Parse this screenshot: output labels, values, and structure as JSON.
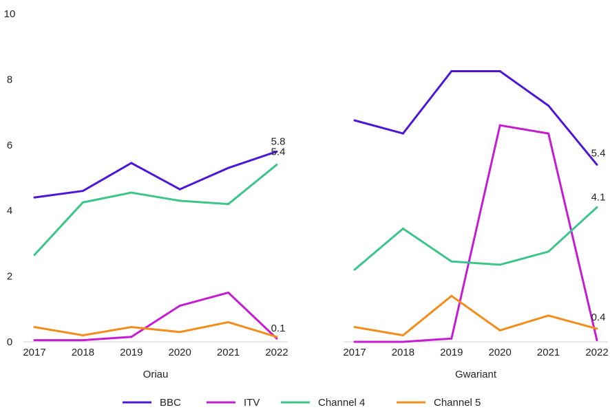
{
  "chart_data": {
    "type": "line",
    "ylim": [
      0,
      10
    ],
    "yticks": [
      "0",
      "2",
      "4",
      "6",
      "8",
      "10"
    ],
    "grid": false,
    "legend_position": "bottom",
    "series_names": [
      "BBC",
      "ITV",
      "Channel 4",
      "Channel 5"
    ],
    "colors": {
      "BBC": "#4B16D6",
      "ITV": "#C41CD0",
      "Channel 4": "#3CC489",
      "Channel 5": "#F28C1A"
    },
    "panels": [
      {
        "xlabel": "Oriau",
        "categories": [
          "2017",
          "2018",
          "2019",
          "2020",
          "2021",
          "2022"
        ],
        "series": [
          {
            "name": "BBC",
            "values": [
              4.4,
              4.6,
              5.45,
              4.65,
              5.3,
              5.8
            ]
          },
          {
            "name": "ITV",
            "values": [
              0.05,
              0.05,
              0.15,
              1.1,
              1.5,
              0.1
            ]
          },
          {
            "name": "Channel 4",
            "values": [
              2.65,
              4.25,
              4.55,
              4.3,
              4.2,
              5.4
            ]
          },
          {
            "name": "Channel 5",
            "values": [
              0.45,
              0.2,
              0.45,
              0.3,
              0.6,
              0.15
            ]
          }
        ],
        "end_labels": [
          "5.8",
          "5.4",
          "0.1"
        ]
      },
      {
        "xlabel": "Gwariant",
        "categories": [
          "2017",
          "2018",
          "2019",
          "2020",
          "2021",
          "2022"
        ],
        "series": [
          {
            "name": "BBC",
            "values": [
              6.75,
              6.35,
              8.25,
              8.25,
              7.2,
              5.4
            ]
          },
          {
            "name": "ITV",
            "values": [
              0.0,
              0.0,
              0.1,
              6.6,
              6.35,
              0.05
            ]
          },
          {
            "name": "Channel 4",
            "values": [
              2.2,
              3.45,
              2.45,
              2.35,
              2.75,
              4.1
            ]
          },
          {
            "name": "Channel 5",
            "values": [
              0.45,
              0.2,
              1.4,
              0.35,
              0.8,
              0.4
            ]
          }
        ],
        "end_labels": [
          "5.4",
          "4.1",
          "0.4"
        ]
      }
    ]
  }
}
